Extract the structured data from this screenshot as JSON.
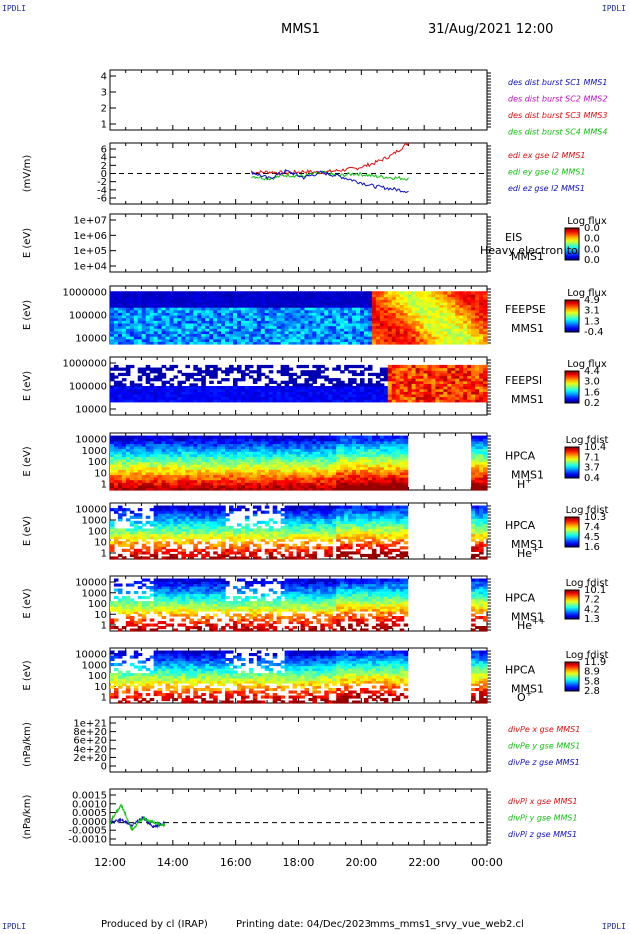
{
  "corner_labels": {
    "top_left": "IPDLI",
    "top_right": "IPDLI",
    "bottom_left": "IPDLI",
    "bottom_right": "IPDLI"
  },
  "header": {
    "spacecraft": "MMS1",
    "datetime": "31/Aug/2021 12:00"
  },
  "footer": {
    "producer": "Produced by cl (IRAP)",
    "printing_date": "Printing date: 04/Dec/2023",
    "script_name": "mms_mms1_srvy_vue_web2.cl"
  },
  "colors": {
    "red": "#e01010",
    "green": "#10c010",
    "blue": "#1010c0",
    "magenta": "#c010c0",
    "spec_low": "#0010ff",
    "spec_high": "#e00000"
  },
  "chart_data": [
    {
      "type": "line",
      "name": "des dist burst",
      "ylim": [
        0.5,
        4.5
      ],
      "ticks": [
        "4",
        "3",
        "2",
        "1"
      ],
      "grid": false,
      "legend": [
        {
          "text": "des dist burst SC1 MMS1",
          "color": "#1010c0"
        },
        {
          "text": "des dist burst SC2 MMS2",
          "color": "#c010c0"
        },
        {
          "text": "des dist burst SC3 MMS3",
          "color": "#e01010"
        },
        {
          "text": "des dist burst SC4 MMS4",
          "color": "#10c010"
        }
      ],
      "series": []
    },
    {
      "type": "line",
      "name": "edi",
      "ylabel": "(mV/m)",
      "ylim": [
        -6,
        6
      ],
      "ticks": [
        "6",
        "4",
        "2",
        "0",
        "-2",
        "-4",
        "-6"
      ],
      "zero_line": true,
      "legend": [
        {
          "text": "edi ex gse l2 MMS1",
          "color": "#e01010"
        },
        {
          "text": "edi ey gse l2 MMS1",
          "color": "#10c010"
        },
        {
          "text": "edi ez gse l2 MMS1",
          "color": "#1010c0"
        }
      ],
      "series": [
        {
          "name": "edi ex gse l2 MMS1",
          "color": "#e01010",
          "x_range": [
            "16:30",
            "21:30"
          ],
          "values": [
            0.2,
            0.3,
            0.1,
            0.4,
            0.2,
            0.6,
            1.0,
            2.0,
            3.5,
            6.0
          ]
        },
        {
          "name": "edi ey gse l2 MMS1",
          "color": "#10c010",
          "x_range": [
            "16:30",
            "21:30"
          ],
          "values": [
            -0.5,
            -1.0,
            -0.3,
            -0.5,
            0.2,
            -0.4,
            0.0,
            -0.5,
            -0.8,
            -1.0
          ]
        },
        {
          "name": "edi ez gse l2 MMS1",
          "color": "#1010c0",
          "x_range": [
            "16:30",
            "21:30"
          ],
          "values": [
            0.3,
            -1.0,
            0.5,
            -0.8,
            0.2,
            -0.5,
            -1.5,
            -2.5,
            -3.0,
            -3.5
          ]
        }
      ]
    },
    {
      "type": "heatmap",
      "name": "EIS",
      "ylabel": "E (eV)",
      "yscale": "log",
      "ticks": [
        "1e+07",
        "1e+06",
        "1e+05",
        "1e+04"
      ],
      "labels": [
        "EIS",
        "MMS1"
      ],
      "overlay_text": "Heavy electron to",
      "cbar_title": "Log flux",
      "cbar_ticks": [
        "0.0",
        "0.0",
        "0.0",
        "0.0"
      ],
      "data": "empty"
    },
    {
      "type": "heatmap",
      "name": "FEEPSE",
      "ylabel": "E (eV)",
      "yscale": "log",
      "ticks": [
        "1000000",
        "100000",
        "10000"
      ],
      "labels": [
        "FEEPSE",
        "MMS1"
      ],
      "cbar_title": "Log flux",
      "cbar_ticks": [
        "4.9",
        "3.1",
        "1.3",
        "-0.4"
      ]
    },
    {
      "type": "heatmap",
      "name": "FEEPSI",
      "ylabel": "E (eV)",
      "yscale": "log",
      "ticks": [
        "1000000",
        "100000",
        "10000"
      ],
      "labels": [
        "FEEPSI",
        "MMS1"
      ],
      "cbar_title": "Log flux",
      "cbar_ticks": [
        "4.4",
        "3.0",
        "1.6",
        "0.2"
      ]
    },
    {
      "type": "heatmap",
      "name": "HPCA H+",
      "ylabel": "E (eV)",
      "yscale": "log",
      "ticks": [
        "10000",
        "1000",
        "100",
        "10",
        "1"
      ],
      "labels": [
        "HPCA",
        "MMS1"
      ],
      "species": "H",
      "species_sup": "+",
      "cbar_title": "Log fdist",
      "cbar_ticks": [
        "10.4",
        "7.1",
        "3.7",
        "0.4"
      ]
    },
    {
      "type": "heatmap",
      "name": "HPCA He+",
      "ylabel": "E (eV)",
      "yscale": "log",
      "ticks": [
        "10000",
        "1000",
        "100",
        "10",
        "1"
      ],
      "labels": [
        "HPCA",
        "MMS1"
      ],
      "species": "He",
      "species_sup": "+",
      "cbar_title": "Log fdist",
      "cbar_ticks": [
        "10.3",
        "7.4",
        "4.5",
        "1.6"
      ]
    },
    {
      "type": "heatmap",
      "name": "HPCA He++",
      "ylabel": "E (eV)",
      "yscale": "log",
      "ticks": [
        "10000",
        "1000",
        "100",
        "10",
        "1"
      ],
      "labels": [
        "HPCA",
        "MMS1"
      ],
      "species": "He",
      "species_sup": "++",
      "cbar_title": "Log fdist",
      "cbar_ticks": [
        "10.1",
        "7.2",
        "4.2",
        "1.3"
      ]
    },
    {
      "type": "heatmap",
      "name": "HPCA O+",
      "ylabel": "E (eV)",
      "yscale": "log",
      "ticks": [
        "10000",
        "1000",
        "100",
        "10",
        "1"
      ],
      "labels": [
        "HPCA",
        "MMS1"
      ],
      "species": "O",
      "species_sup": "+",
      "cbar_title": "Log fdist",
      "cbar_ticks": [
        "11.9",
        "8.9",
        "5.8",
        "2.8"
      ]
    },
    {
      "type": "line",
      "name": "divPe",
      "ylabel": "(nPa/km)",
      "ylim": [
        0,
        1e+21
      ],
      "ticks": [
        "1e+21",
        "8e+20",
        "6e+20",
        "4e+20",
        "2e+20",
        "0"
      ],
      "zero_line": true,
      "legend": [
        {
          "text": "divPe x gse MMS1",
          "color": "#e01010"
        },
        {
          "text": "divPe y gse MMS1",
          "color": "#10c010"
        },
        {
          "text": "divPe z gse MMS1",
          "color": "#1010c0"
        }
      ],
      "series": []
    },
    {
      "type": "line",
      "name": "divPi",
      "ylabel": "(nPa/km)",
      "ylim": [
        -0.001,
        0.0015
      ],
      "ticks": [
        "0.0015",
        "0.0010",
        "0.0005",
        "0.0000",
        "-0.0005",
        "-0.0010"
      ],
      "zero_line": true,
      "legend": [
        {
          "text": "divPi x gse MMS1",
          "color": "#e01010"
        },
        {
          "text": "divPi y gse MMS1",
          "color": "#10c010"
        },
        {
          "text": "divPi z gse MMS1",
          "color": "#1010c0"
        }
      ],
      "series": [
        {
          "name": "divPi z gse MMS1",
          "color": "#1010c0",
          "x_range": [
            "12:00",
            "13:45"
          ],
          "values": [
            0.0,
            0.0001,
            -0.0001,
            0.0002,
            -0.0002,
            0.0
          ]
        },
        {
          "name": "divPi y gse MMS1",
          "color": "#10c010",
          "x_range": [
            "12:00",
            "13:45"
          ],
          "values": [
            0.0,
            0.0008,
            -0.0003,
            0.0002,
            0.0,
            -0.0001
          ]
        }
      ]
    }
  ],
  "x_axis": {
    "ticks": [
      "12:00",
      "14:00",
      "16:00",
      "18:00",
      "20:00",
      "22:00",
      "00:00"
    ]
  }
}
